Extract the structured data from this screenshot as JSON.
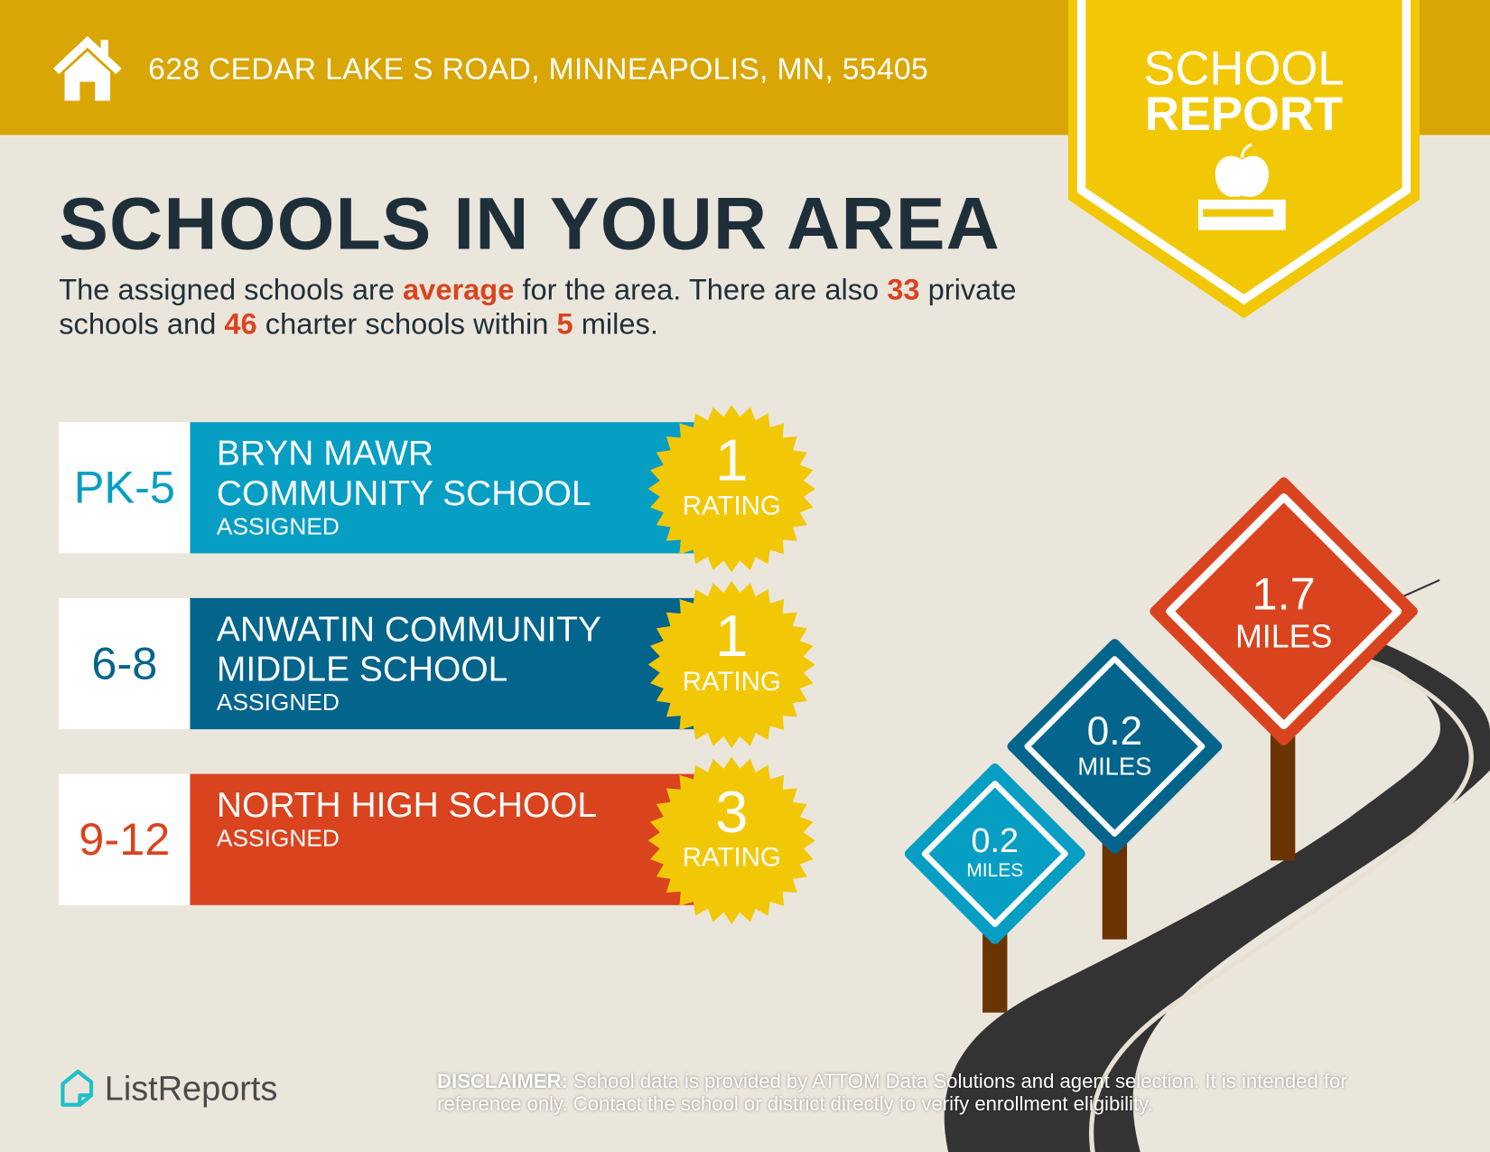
{
  "header": {
    "address": "628 CEDAR LAKE S ROAD, MINNEAPOLIS, MN, 55405",
    "badge_line1": "SCHOOL",
    "badge_line2": "REPORT",
    "home_icon": "house-icon",
    "badge_icon": "apple-on-book-icon"
  },
  "title": "SCHOOLS IN YOUR AREA",
  "intro": {
    "t1": "The assigned schools are ",
    "quality": "average",
    "t2": " for the area. There are also ",
    "private_count": "33",
    "t3": " private schools and ",
    "charter_count": "46",
    "t4": " charter schools within ",
    "radius": "5",
    "t5": " miles."
  },
  "schools": [
    {
      "grades": "PK-5",
      "name": "BRYN MAWR COMMUNITY SCHOOL",
      "status": "ASSIGNED",
      "rating": "1",
      "rating_label": "RATING",
      "color": "#079ec4"
    },
    {
      "grades": "6-8",
      "name": "ANWATIN COMMUNITY MIDDLE SCHOOL",
      "status": "ASSIGNED",
      "rating": "1",
      "rating_label": "RATING",
      "color": "#03648c"
    },
    {
      "grades": "9-12",
      "name": "NORTH HIGH SCHOOL",
      "status": "ASSIGNED",
      "rating": "3",
      "rating_label": "RATING",
      "color": "#d9441f"
    }
  ],
  "distances": [
    {
      "value": "0.2",
      "unit": "MILES",
      "color": "#079ec4"
    },
    {
      "value": "0.2",
      "unit": "MILES",
      "color": "#03648c"
    },
    {
      "value": "1.7",
      "unit": "MILES",
      "color": "#d9441f"
    }
  ],
  "footer": {
    "logo": "ListReports",
    "disclaimer_label": "DISCLAIMER:",
    "disclaimer": " School data is provided by ATTOM Data Solutions and agent selection. It is intended for reference only. Contact the school or district directly to verify enrollment eligibility."
  },
  "colors": {
    "topbar": "#d9a606",
    "badge": "#f2c705",
    "background": "#ebe6dc",
    "accent": "#d9441f",
    "text": "#1f2f3a"
  }
}
